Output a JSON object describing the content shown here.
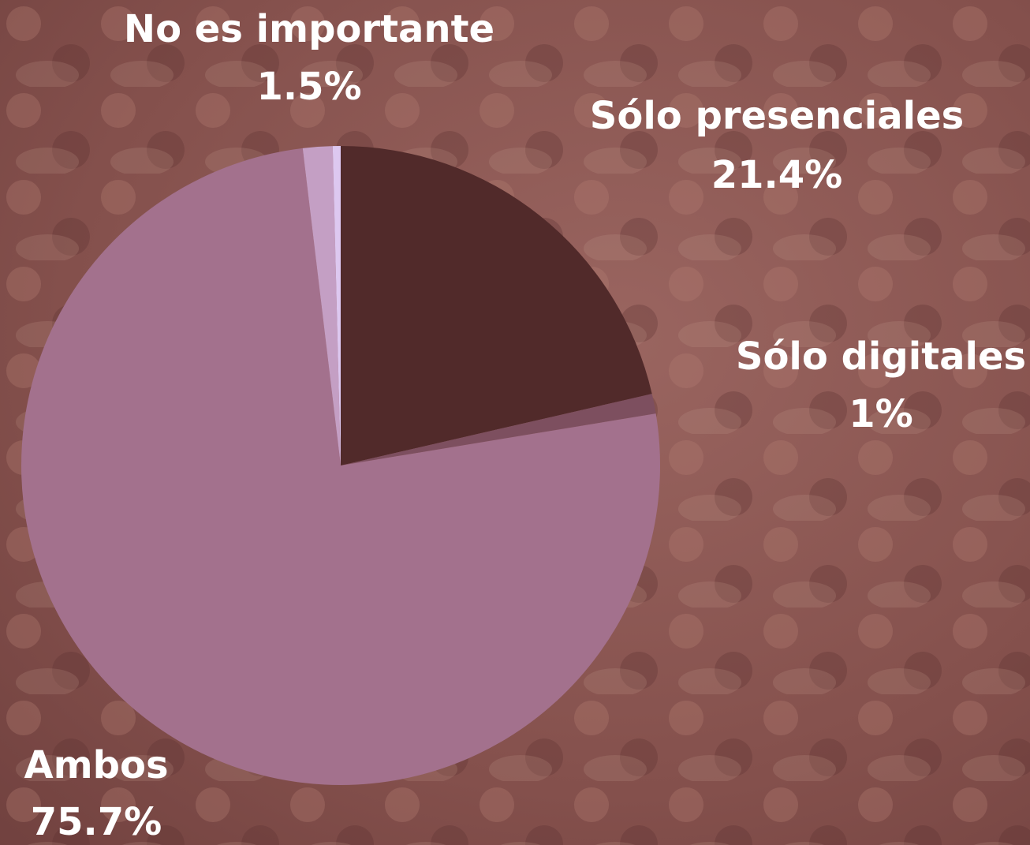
{
  "chart_data": {
    "type": "pie",
    "categories": [
      "Sólo presenciales",
      "Sólo digitales",
      "Ambos",
      "No es importante",
      null
    ],
    "values": [
      21.4,
      1,
      75.7,
      1.5,
      0.4
    ],
    "value_labels": [
      "21.4%",
      "1%",
      "75.7%",
      "1.5%",
      null
    ],
    "colors": [
      "#512a2a",
      "#7d4f5f",
      "#a3718d",
      "#c49fc4",
      "#ddc8f0"
    ]
  }
}
